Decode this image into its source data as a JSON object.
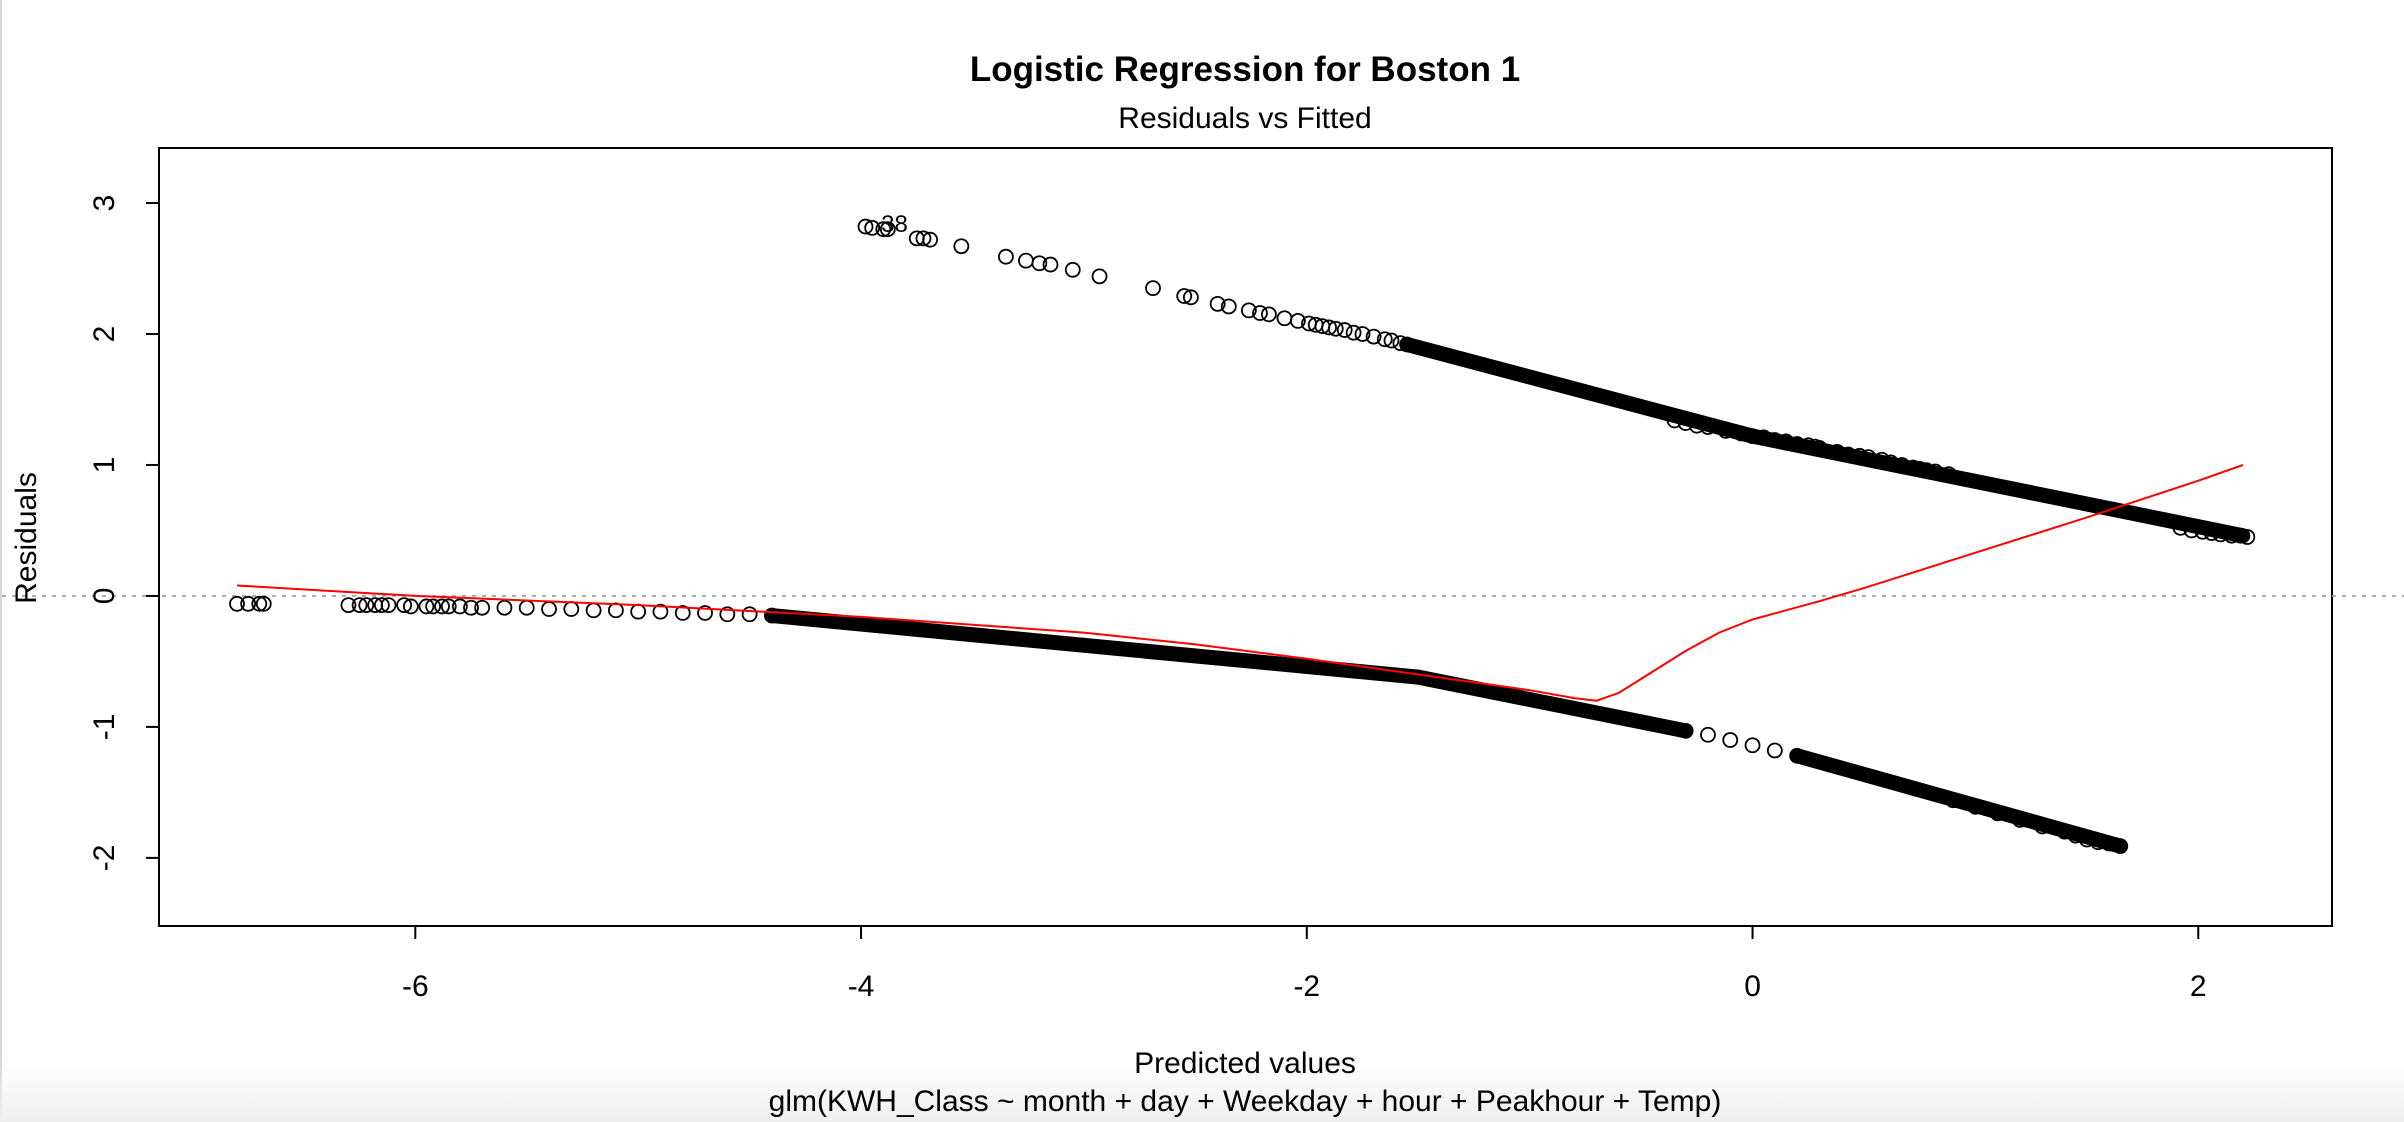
{
  "chart_data": {
    "type": "scatter",
    "title": "Logistic Regression for Boston 1",
    "subtitle": "Residuals vs Fitted",
    "xlabel": "Predicted values",
    "xlabel2": "glm(KWH_Class ~ month + day + Weekday + hour + Peakhour + Temp)",
    "ylabel": "Residuals",
    "xlim": [
      -7.15,
      2.6
    ],
    "ylim": [
      -2.52,
      3.42
    ],
    "x_ticks": [
      -6,
      -4,
      -2,
      0,
      2
    ],
    "y_ticks": [
      -2,
      -1,
      0,
      1,
      2,
      3
    ],
    "x_tick_labels": [
      "-6",
      "-4",
      "-2",
      "0",
      "2"
    ],
    "y_tick_labels": [
      "-2",
      "-1",
      "0",
      "1",
      "2",
      "3"
    ],
    "reference_line_y": 0,
    "point_labels": [
      {
        "text": "38",
        "x": -3.85,
        "y": 2.84
      }
    ],
    "series": [
      {
        "marker": "open-circle",
        "color": "#000000",
        "points": [
          [
            -3.98,
            2.82
          ],
          [
            -3.95,
            2.81
          ],
          [
            -3.9,
            2.8
          ],
          [
            -3.88,
            2.8
          ],
          [
            -3.75,
            2.73
          ],
          [
            -3.72,
            2.73
          ],
          [
            -3.69,
            2.72
          ],
          [
            -3.55,
            2.67
          ],
          [
            -3.35,
            2.59
          ],
          [
            -3.26,
            2.56
          ],
          [
            -3.2,
            2.54
          ],
          [
            -3.15,
            2.53
          ],
          [
            -3.05,
            2.49
          ],
          [
            -2.93,
            2.44
          ],
          [
            -2.69,
            2.35
          ],
          [
            -2.55,
            2.29
          ],
          [
            -2.52,
            2.28
          ],
          [
            -2.4,
            2.23
          ],
          [
            -2.35,
            2.21
          ],
          [
            -2.26,
            2.18
          ],
          [
            -2.21,
            2.16
          ],
          [
            -2.17,
            2.15
          ],
          [
            -2.1,
            2.12
          ],
          [
            -2.04,
            2.1
          ],
          [
            -1.99,
            2.08
          ],
          [
            -1.96,
            2.07
          ],
          [
            -1.93,
            2.06
          ],
          [
            -1.9,
            2.05
          ],
          [
            -1.87,
            2.04
          ],
          [
            -1.83,
            2.03
          ],
          [
            -1.79,
            2.01
          ],
          [
            -1.75,
            2.0
          ],
          [
            -1.7,
            1.98
          ],
          [
            -1.65,
            1.96
          ],
          [
            -1.62,
            1.95
          ],
          [
            -1.58,
            1.93
          ],
          [
            -1.55,
            1.92
          ],
          [
            -0.35,
            1.34
          ],
          [
            -0.3,
            1.32
          ],
          [
            -0.25,
            1.3
          ],
          [
            -0.2,
            1.29
          ],
          [
            -0.12,
            1.26
          ],
          [
            -0.05,
            1.24
          ],
          [
            0.0,
            1.22
          ],
          [
            0.05,
            1.21
          ],
          [
            0.1,
            1.19
          ],
          [
            0.15,
            1.18
          ],
          [
            0.2,
            1.16
          ],
          [
            0.25,
            1.15
          ],
          [
            0.28,
            1.14
          ],
          [
            0.3,
            1.13
          ],
          [
            0.38,
            1.1
          ],
          [
            0.43,
            1.08
          ],
          [
            0.48,
            1.07
          ],
          [
            0.52,
            1.06
          ],
          [
            0.58,
            1.04
          ],
          [
            0.62,
            1.02
          ],
          [
            0.67,
            1.0
          ],
          [
            0.72,
            0.98
          ],
          [
            0.75,
            0.97
          ],
          [
            0.78,
            0.96
          ],
          [
            0.82,
            0.95
          ],
          [
            0.88,
            0.93
          ],
          [
            1.92,
            0.52
          ],
          [
            1.97,
            0.5
          ],
          [
            2.02,
            0.49
          ],
          [
            2.06,
            0.48
          ],
          [
            2.1,
            0.47
          ],
          [
            2.15,
            0.46
          ],
          [
            2.19,
            0.46
          ],
          [
            2.22,
            0.45
          ],
          [
            -6.8,
            -0.06
          ],
          [
            -6.75,
            -0.06
          ],
          [
            -6.7,
            -0.06
          ],
          [
            -6.68,
            -0.06
          ],
          [
            -6.3,
            -0.07
          ],
          [
            -6.25,
            -0.07
          ],
          [
            -6.22,
            -0.07
          ],
          [
            -6.18,
            -0.07
          ],
          [
            -6.15,
            -0.07
          ],
          [
            -6.12,
            -0.07
          ],
          [
            -6.05,
            -0.07
          ],
          [
            -6.02,
            -0.08
          ],
          [
            -5.95,
            -0.08
          ],
          [
            -5.92,
            -0.08
          ],
          [
            -5.88,
            -0.08
          ],
          [
            -5.85,
            -0.08
          ],
          [
            -5.8,
            -0.08
          ],
          [
            -5.75,
            -0.09
          ],
          [
            -5.7,
            -0.09
          ],
          [
            -5.6,
            -0.09
          ],
          [
            -5.5,
            -0.09
          ],
          [
            -5.4,
            -0.1
          ],
          [
            -5.3,
            -0.1
          ],
          [
            -5.2,
            -0.11
          ],
          [
            -5.1,
            -0.11
          ],
          [
            -5.0,
            -0.12
          ],
          [
            -4.9,
            -0.12
          ],
          [
            -4.8,
            -0.13
          ],
          [
            -4.7,
            -0.13
          ],
          [
            -4.6,
            -0.14
          ],
          [
            -4.5,
            -0.14
          ],
          [
            -4.4,
            -0.15
          ],
          [
            -0.3,
            -1.03
          ],
          [
            -0.2,
            -1.06
          ],
          [
            -0.1,
            -1.1
          ],
          [
            0.0,
            -1.14
          ],
          [
            0.1,
            -1.18
          ],
          [
            0.2,
            -1.22
          ],
          [
            0.9,
            -1.56
          ],
          [
            1.0,
            -1.61
          ],
          [
            1.1,
            -1.66
          ],
          [
            1.2,
            -1.71
          ],
          [
            1.3,
            -1.76
          ],
          [
            1.4,
            -1.8
          ],
          [
            1.45,
            -1.83
          ],
          [
            1.5,
            -1.86
          ],
          [
            1.55,
            -1.88
          ],
          [
            1.6,
            -1.89
          ],
          [
            1.65,
            -1.91
          ]
        ],
        "dense_bands": [
          {
            "x_from": -1.55,
            "x_to": 0.0,
            "y_at_start": 1.92,
            "y_at_end": 1.22
          },
          {
            "x_from": 0.0,
            "x_to": 2.2,
            "y_at_start": 1.22,
            "y_at_end": 0.46
          },
          {
            "x_from": -4.4,
            "x_to": -1.5,
            "y_at_start": -0.15,
            "y_at_end": -0.62
          },
          {
            "x_from": -1.5,
            "x_to": -0.3,
            "y_at_start": -0.62,
            "y_at_end": -1.03
          },
          {
            "x_from": 0.2,
            "x_to": 1.65,
            "y_at_start": -1.22,
            "y_at_end": -1.91
          }
        ]
      }
    ],
    "smooth_line": {
      "color": "#ff0000",
      "points": [
        [
          -6.8,
          0.08
        ],
        [
          -6.0,
          0.0
        ],
        [
          -5.0,
          -0.07
        ],
        [
          -4.0,
          -0.16
        ],
        [
          -3.0,
          -0.28
        ],
        [
          -2.5,
          -0.37
        ],
        [
          -2.0,
          -0.48
        ],
        [
          -1.5,
          -0.6
        ],
        [
          -1.0,
          -0.72
        ],
        [
          -0.8,
          -0.78
        ],
        [
          -0.7,
          -0.8
        ],
        [
          -0.6,
          -0.74
        ],
        [
          -0.45,
          -0.58
        ],
        [
          -0.3,
          -0.42
        ],
        [
          -0.15,
          -0.28
        ],
        [
          0.0,
          -0.18
        ],
        [
          0.3,
          -0.04
        ],
        [
          0.5,
          0.06
        ],
        [
          1.0,
          0.33
        ],
        [
          1.5,
          0.6
        ],
        [
          2.0,
          0.88
        ],
        [
          2.2,
          1.0
        ]
      ]
    }
  }
}
